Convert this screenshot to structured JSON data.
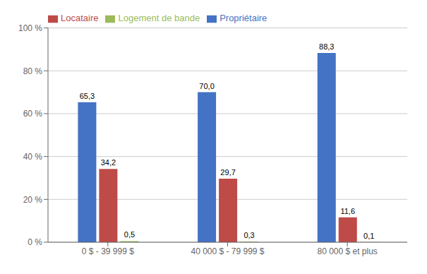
{
  "chart_data": {
    "type": "bar",
    "categories": [
      "0 $ - 39 999 $",
      "40 000 $ - 79 999 $",
      "80 000 $ et plus"
    ],
    "series": [
      {
        "name": "Propriétaire",
        "color": "#4472C4",
        "values": [
          65.3,
          70.0,
          88.3
        ],
        "value_labels": [
          "65,3",
          "70,0",
          "88,3"
        ]
      },
      {
        "name": "Locataire",
        "color": "#BE4B48",
        "values": [
          34.2,
          29.7,
          11.6
        ],
        "value_labels": [
          "34,2",
          "29,7",
          "11,6"
        ]
      },
      {
        "name": "Logement de bande",
        "color": "#9BBB59",
        "values": [
          0.5,
          0.3,
          0.1
        ],
        "value_labels": [
          "0,5",
          "0,3",
          "0,1"
        ]
      }
    ],
    "ylim": [
      0,
      100
    ],
    "yticks": [
      {
        "value": 0,
        "label": "0 %"
      },
      {
        "value": 20,
        "label": "20 %"
      },
      {
        "value": 40,
        "label": "40 %"
      },
      {
        "value": 60,
        "label": "60 %"
      },
      {
        "value": 80,
        "label": "80 %"
      },
      {
        "value": 100,
        "label": "100 %"
      }
    ],
    "grid": true,
    "legend": "upper left",
    "data_labels": true
  }
}
